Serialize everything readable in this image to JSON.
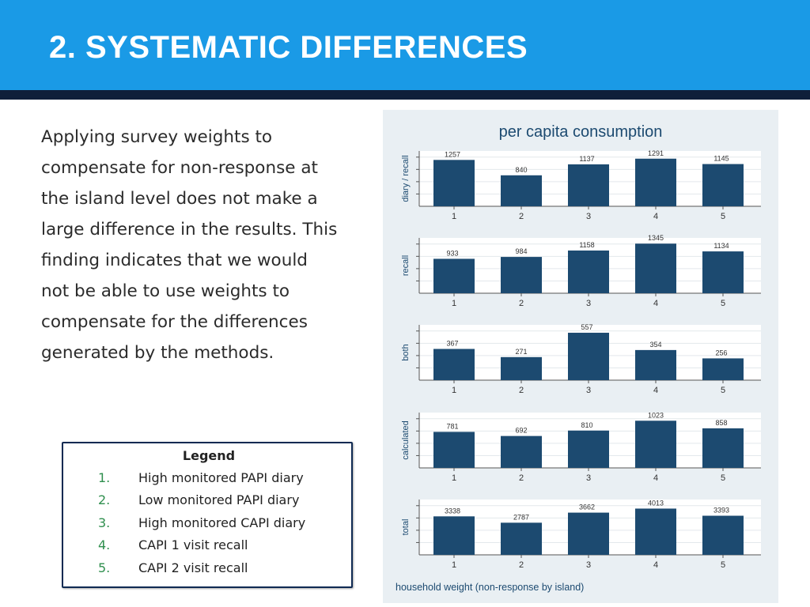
{
  "slide": {
    "title": "2. SYSTEMATIC DIFFERENCES",
    "body_lines": [
      "Applying survey weights to",
      "compensate for non-response at",
      "the island level does not make a",
      "large difference in the results.  This",
      "finding indicates that we would",
      "not be able to use weights to",
      "compensate for the differences",
      "generated by the methods."
    ]
  },
  "legend": {
    "title": "Legend",
    "items": [
      {
        "num": "1.",
        "label": "High monitored PAPI diary"
      },
      {
        "num": "2.",
        "label": "Low monitored PAPI diary"
      },
      {
        "num": "3.",
        "label": "High monitored CAPI diary"
      },
      {
        "num": "4.",
        "label": "CAPI 1 visit recall"
      },
      {
        "num": "5.",
        "label": "CAPI 2 visit recall"
      }
    ]
  },
  "colors": {
    "header": "#1a9ae6",
    "header_bar": "#0f1f3a",
    "bar": "#1c4a70",
    "panel": "#e9eff3",
    "legend_numbers": "#2f8f4e"
  },
  "chart_data": {
    "type": "bar",
    "title": "per capita consumption",
    "note": "household weight (non-response by island)",
    "categories": [
      "1",
      "2",
      "3",
      "4",
      "5"
    ],
    "grid": true,
    "panels": [
      {
        "ylabel": "diary / recall",
        "values": [
          1257,
          840,
          1137,
          1291,
          1145
        ],
        "ylim": [
          0,
          1500
        ]
      },
      {
        "ylabel": "recall",
        "values": [
          933,
          984,
          1158,
          1345,
          1134
        ],
        "ylim": [
          0,
          1500
        ]
      },
      {
        "ylabel": "both",
        "values": [
          367,
          271,
          557,
          354,
          256
        ],
        "ylim": [
          0,
          650
        ]
      },
      {
        "ylabel": "calculated",
        "values": [
          781,
          692,
          810,
          1023,
          858
        ],
        "ylim": [
          0,
          1200
        ]
      },
      {
        "ylabel": "total",
        "values": [
          3338,
          2787,
          3662,
          4013,
          3393
        ],
        "ylim": [
          0,
          4800
        ]
      }
    ]
  }
}
